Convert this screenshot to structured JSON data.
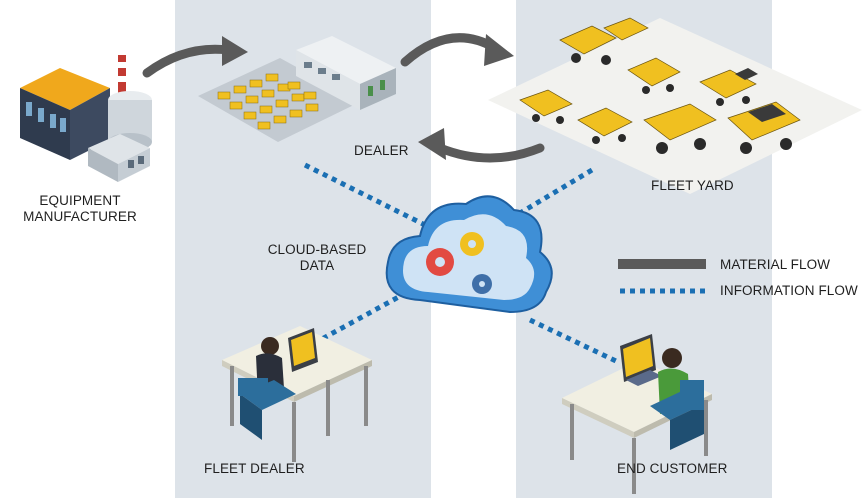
{
  "labels": {
    "manufacturer_line1": "EQUIPMENT",
    "manufacturer_line2": "MANUFACTURER",
    "dealer": "DEALER",
    "fleet_yard": "FLEET YARD",
    "cloud_line1": "CLOUD-BASED",
    "cloud_line2": "DATA",
    "fleet_dealer": "FLEET DEALER",
    "end_customer": "END CUSTOMER"
  },
  "legend": {
    "material_flow": "MATERIAL FLOW",
    "information_flow": "INFORMATION FLOW"
  },
  "colors": {
    "band": "#dde3e9",
    "material_arrow": "#5a5a5a",
    "information_line": "#1a6fb3",
    "truck_yellow": "#f0c020",
    "cloud_blue": "#3f8fd6"
  }
}
